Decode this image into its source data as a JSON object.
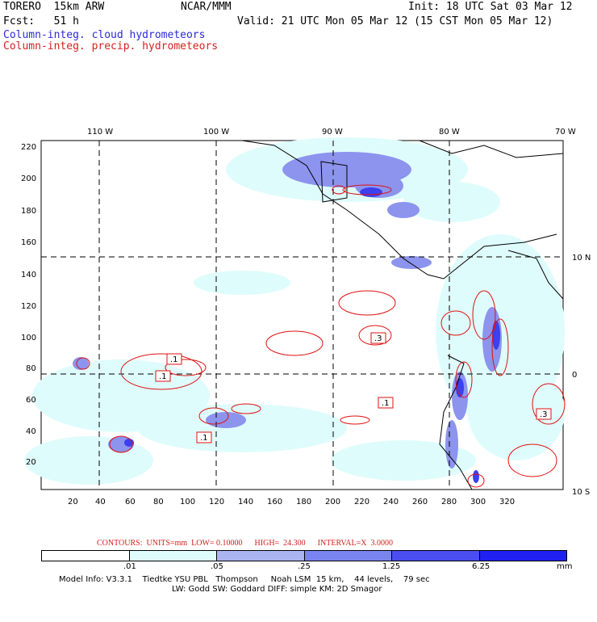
{
  "header": {
    "model": "TORERO  15km ARW",
    "center": "NCAR/MMM",
    "init": "Init: 18 UTC Sat 03 Mar 12",
    "fcst": "Fcst:   51 h",
    "valid": "Valid: 21 UTC Mon 05 Mar 12 (15 CST Mon 05 Mar 12)",
    "field_cloud": "Column-integ. cloud hydrometeors",
    "field_precip": "Column-integ. precip. hydrometeors"
  },
  "colors": {
    "cloud_label": "#2a2ad8",
    "precip_label": "#d42020",
    "contour": "#e01010",
    "shade_1": "#dffcfc",
    "shade_2": "#aab4f0",
    "shade_3": "#7a84ee",
    "shade_4": "#4a4ef0",
    "shade_5": "#2020f0"
  },
  "map": {
    "lon_labels": [
      "110 W",
      "100 W",
      "90 W",
      "80 W",
      "70 W"
    ],
    "lat_labels": [
      "10 N",
      "0",
      "10 S"
    ],
    "x_ticks": [
      "20",
      "40",
      "60",
      "80",
      "100",
      "120",
      "140",
      "160",
      "180",
      "200",
      "220",
      "240",
      "260",
      "280",
      "300",
      "320"
    ],
    "y_ticks": [
      "220",
      "200",
      "180",
      "160",
      "140",
      "120",
      "100",
      "80",
      "60",
      "40",
      "20"
    ],
    "contour_labels": [
      ".1",
      ".1",
      ".1",
      ".3",
      ".1",
      ".3"
    ]
  },
  "contour_info": {
    "text": "CONTOURS:  UNITS=mm  LOW= 0.10000      HIGH=  24.300      INTERVAL=X  3.0000"
  },
  "colorbar": {
    "labels": [
      ".01",
      ".05",
      ".25",
      "1.25",
      "6.25"
    ],
    "units": "mm"
  },
  "footer": {
    "line1": "Model Info: V3.3.1    Tiedtke YSU PBL   Thompson     Noah LSM  15 km,    44 levels,    79 sec",
    "line2": "LW: Godd SW: Goddard DIFF: simple KM: 2D Smagor"
  }
}
